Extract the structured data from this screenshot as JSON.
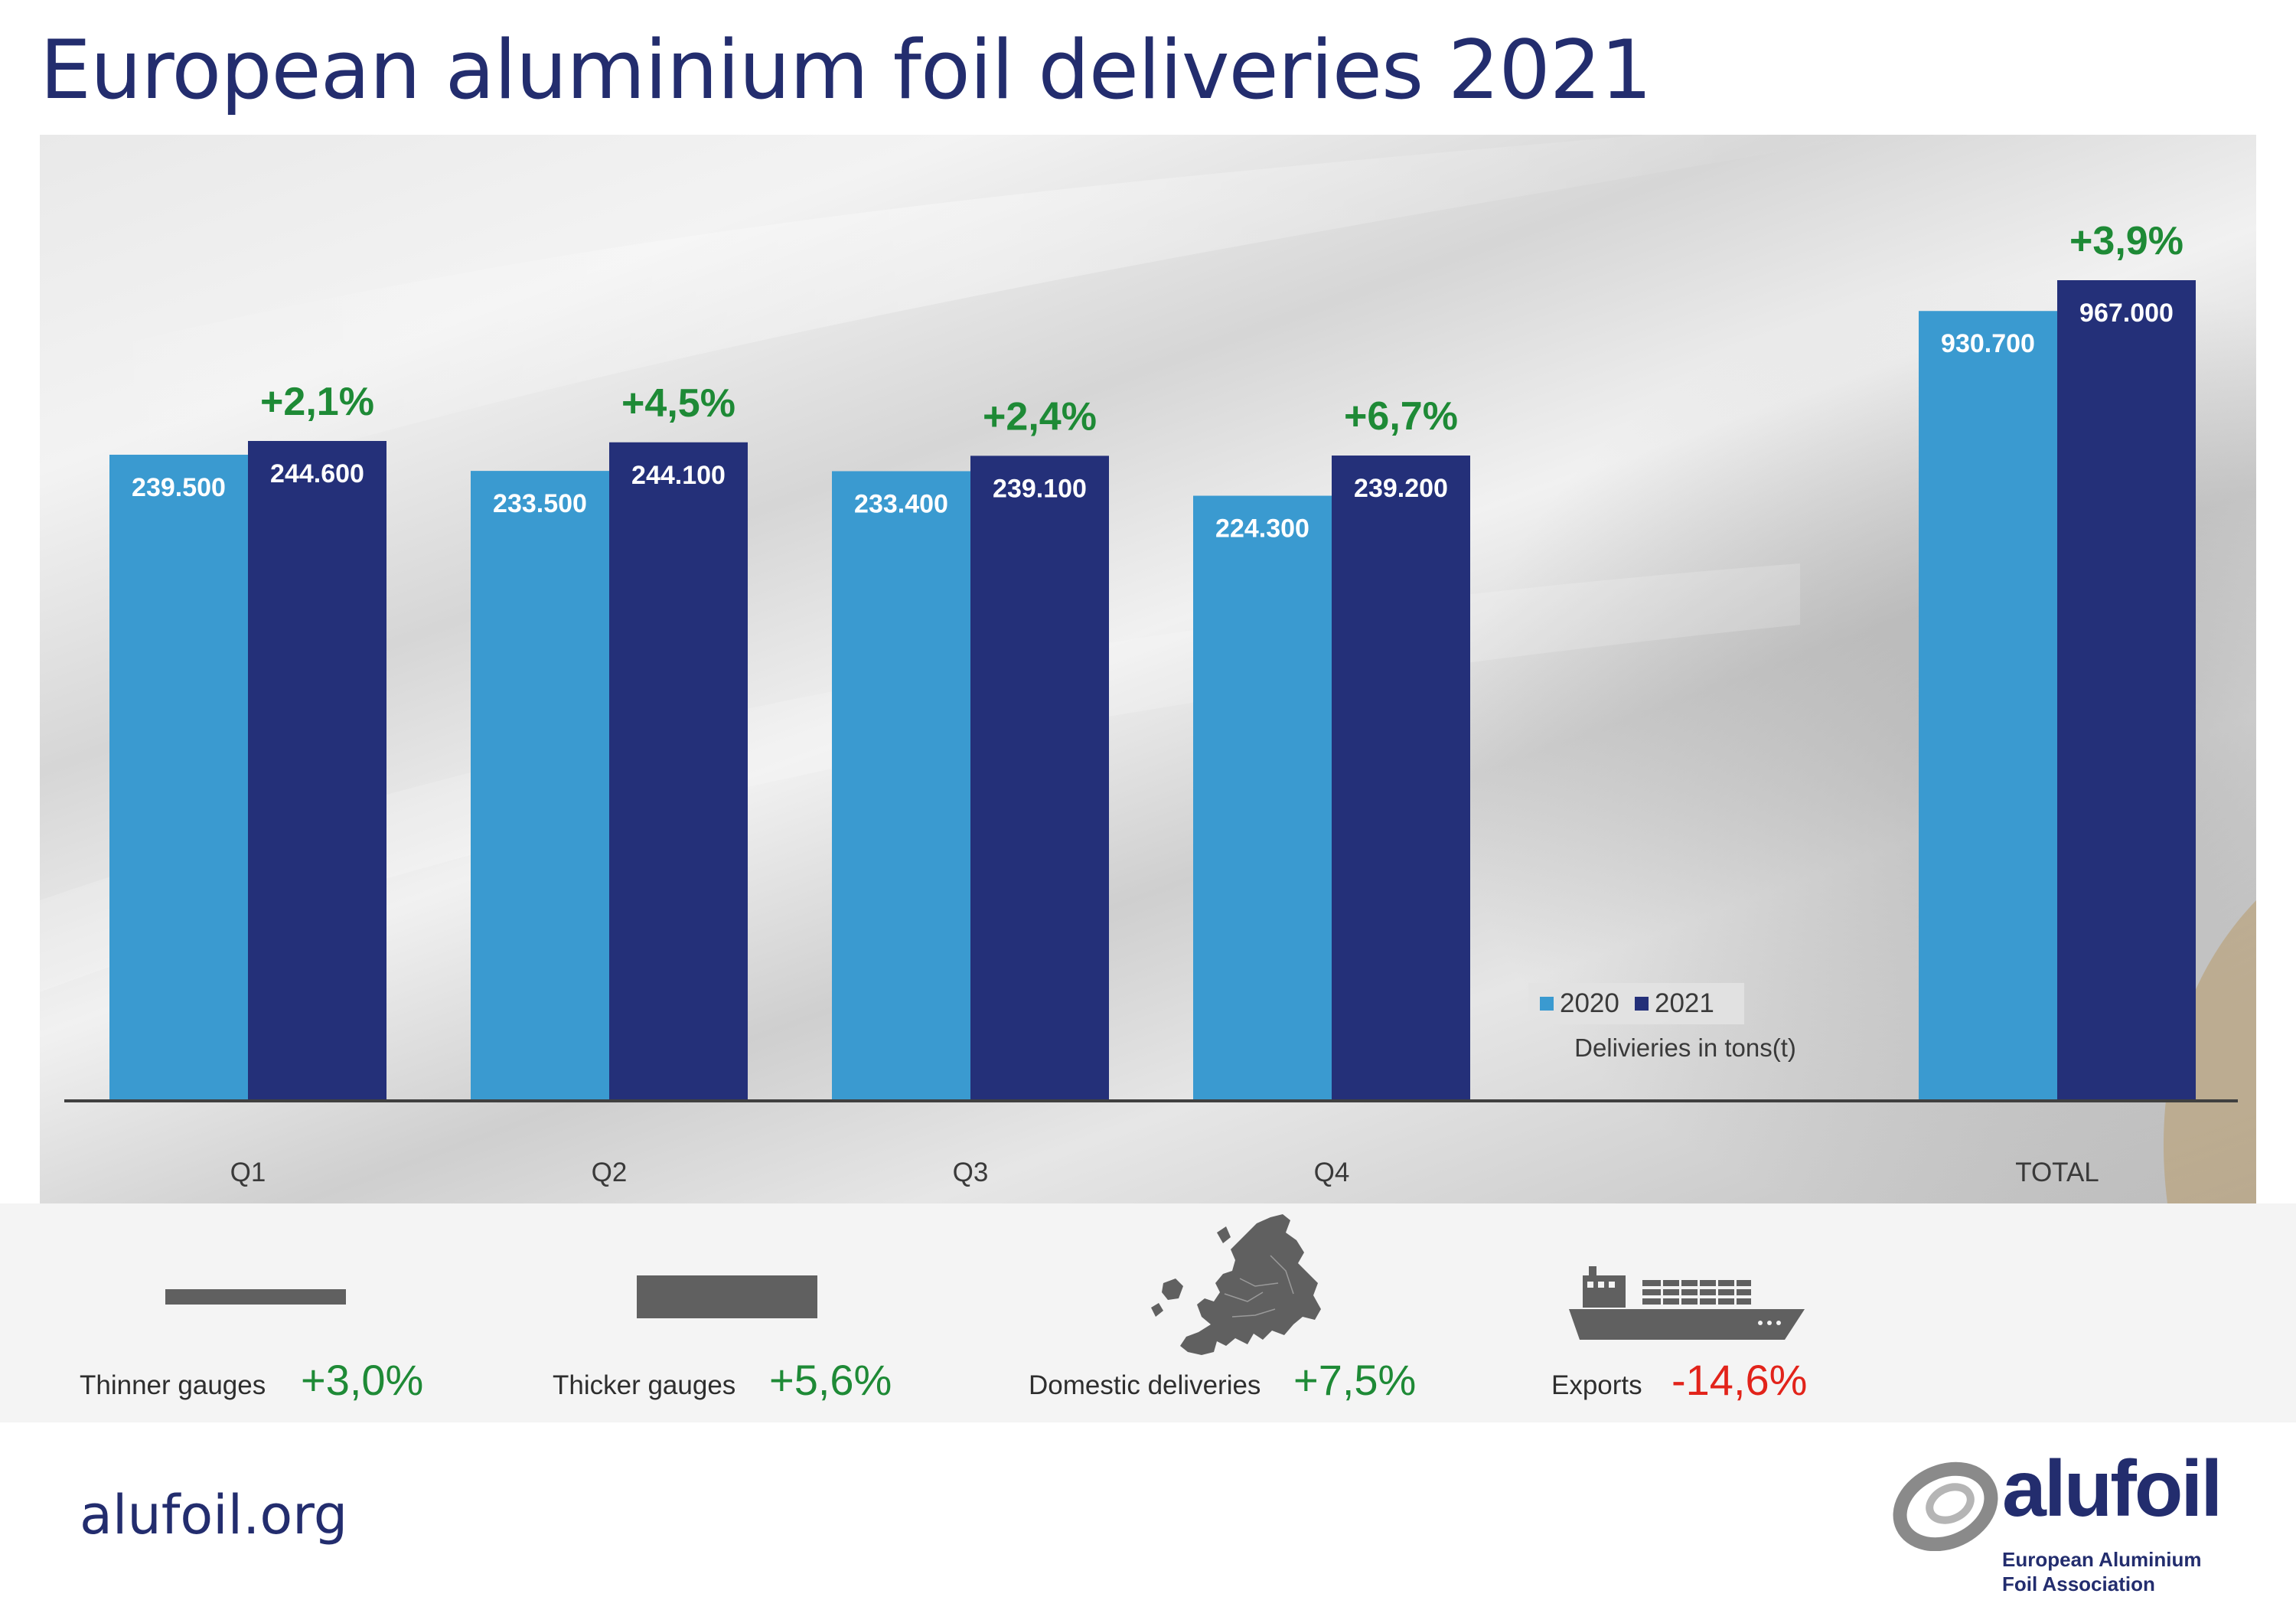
{
  "title": "European aluminium foil deliveries 2021",
  "chart_data": {
    "type": "bar",
    "title": "European aluminium foil deliveries 2021",
    "xlabel": "",
    "ylabel": "",
    "unit_note": "Delivieries in tons(t)",
    "categories": [
      "Q1",
      "Q2",
      "Q3",
      "Q4",
      "TOTAL"
    ],
    "series": [
      {
        "name": "2020",
        "values": [
          239500,
          233500,
          233400,
          224300,
          930700
        ],
        "labels": [
          "239.500",
          "233.500",
          "233.400",
          "224.300",
          "930.700"
        ]
      },
      {
        "name": "2021",
        "values": [
          244600,
          244100,
          239100,
          239200,
          967000
        ],
        "labels": [
          "244.600",
          "244.100",
          "239.100",
          "239.200",
          "967.000"
        ]
      }
    ],
    "growth_labels": [
      "+2,1%",
      "+4,5%",
      "+2,4%",
      "+6,7%",
      "+3,9%"
    ],
    "legend_position": "bottom-right",
    "grid": false
  },
  "colors": {
    "series_2020": "#3a9ad0",
    "series_2021": "#243079",
    "growth_positive": "#1e8a36",
    "growth_negative": "#e2231a",
    "title": "#232d6e",
    "icon_gray": "#606060"
  },
  "kpis": [
    {
      "label": "Thinner gauges",
      "value": "+3,0%",
      "icon": "thin-bar-icon",
      "trend": "positive"
    },
    {
      "label": "Thicker gauges",
      "value": "+5,6%",
      "icon": "thick-bar-icon",
      "trend": "positive"
    },
    {
      "label": "Domestic deliveries",
      "value": "+7,5%",
      "icon": "europe-map-icon",
      "trend": "positive"
    },
    {
      "label": "Exports",
      "value": "-14,6%",
      "icon": "cargo-ship-icon",
      "trend": "negative"
    }
  ],
  "footer": {
    "url": "alufoil.org",
    "logo_word": "alufoil",
    "logo_line1": "European Aluminium",
    "logo_line2": "Foil Association"
  }
}
